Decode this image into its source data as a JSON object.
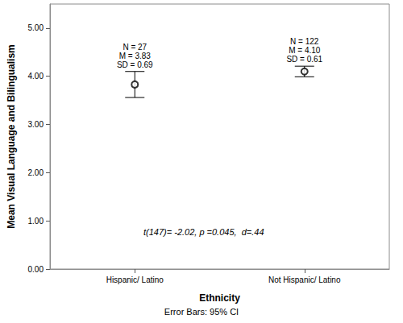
{
  "chart_data": {
    "type": "scatter",
    "categories": [
      "Hispanic/ Latino",
      "Not Hispanic/ Latino"
    ],
    "values": [
      3.83,
      4.1
    ],
    "ci_low": [
      3.56,
      3.99
    ],
    "ci_high": [
      4.1,
      4.21
    ],
    "point_labels": [
      [
        "N = 27",
        "M = 3.83",
        "SD = 0.69"
      ],
      [
        "N = 122",
        "M = 4.10",
        "SD = 0.61"
      ]
    ],
    "x_label": "Ethnicity",
    "y_label": "Mean Visual Language and Bilingualism",
    "annotation": "t(147)= -2.02, p =0.045,  d=.44",
    "note": "Error Bars: 95% CI",
    "color": "#000000",
    "marker": "circle-open",
    "ylim": [
      0,
      5.5
    ],
    "yticks": [
      {
        "value": 0,
        "label": "0.00"
      },
      {
        "value": 1,
        "label": "1.00"
      },
      {
        "value": 2,
        "label": "2.00"
      },
      {
        "value": 3,
        "label": "3.00"
      },
      {
        "value": 4,
        "label": "4.00"
      },
      {
        "value": 5,
        "label": "5.00"
      }
    ],
    "grid": false
  }
}
